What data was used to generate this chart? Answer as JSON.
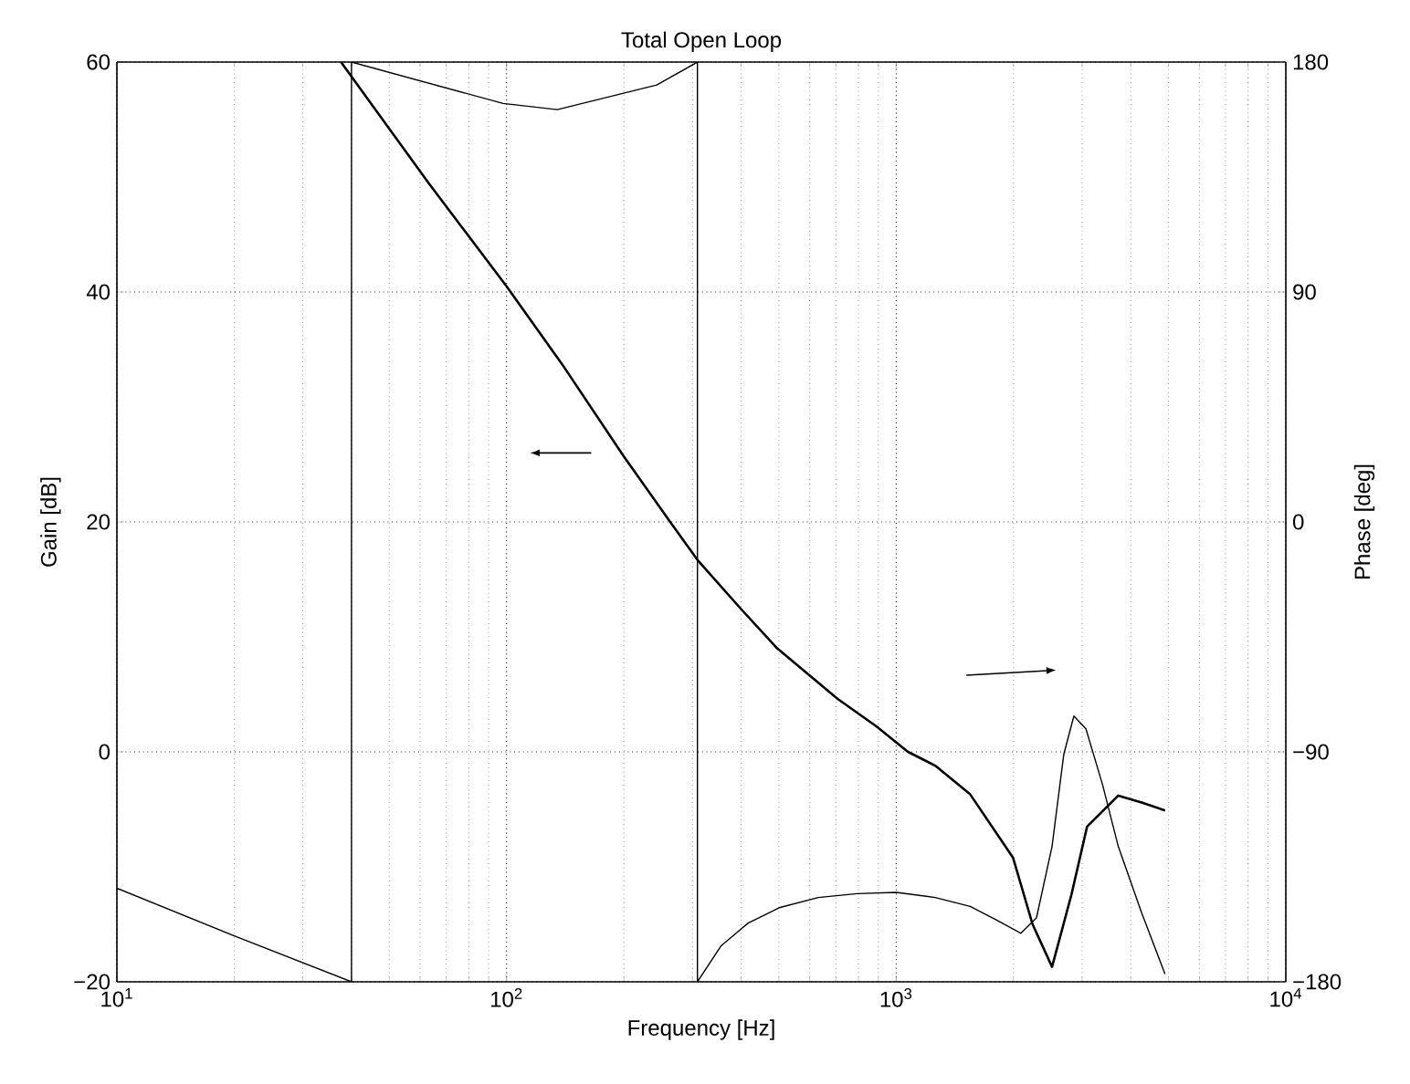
{
  "chart_data": {
    "type": "line",
    "title": "Total Open Loop",
    "xlabel": "Frequency [Hz]",
    "ylabel": "Gain [dB]",
    "y2label": "Phase [deg]",
    "log": "x",
    "grid": true,
    "xlim": [
      10,
      10000
    ],
    "xticks": [
      {
        "value": 10,
        "label": "10$^{1}$"
      },
      {
        "value": 100,
        "label": "10$^{2}$"
      },
      {
        "value": 1000,
        "label": "10$^{3}$"
      },
      {
        "value": 10000,
        "label": "10$^{4}$"
      }
    ],
    "ylim": [
      -20,
      60
    ],
    "yticks": [
      {
        "value": -20,
        "label": "−20"
      },
      0,
      20,
      40,
      60
    ],
    "y2lim": [
      -180,
      180
    ],
    "y2ticks": [
      {
        "value": -180,
        "label": "−180"
      },
      {
        "value": -90,
        "label": "−90"
      },
      0,
      90,
      180
    ],
    "series": [
      {
        "color": "#000000",
        "x": [
          37.6,
          63,
          100,
          139,
          200,
          263,
          309,
          398,
          495,
          708,
          891,
          1072,
          1259,
          1549,
          1995,
          2239,
          2512,
          2818,
          3090,
          3715,
          4266,
          4898
        ],
        "values": [
          60,
          49.5,
          40.5,
          33.7,
          25.7,
          20,
          16.7,
          12.5,
          9,
          4.6,
          2.2,
          0,
          -1.2,
          -3.7,
          -9.2,
          -15,
          -18.7,
          -12.4,
          -6.5,
          -3.8,
          -4.4,
          -5.1
        ]
      },
      {
        "color": "#000000",
        "axis": "y2",
        "x": [
          10,
          20,
          40,
          40,
          98,
          135,
          243,
          309,
          309,
          355,
          417,
          501,
          631,
          794,
          1000,
          1259,
          1549,
          1820,
          2089,
          2291,
          2512,
          2692,
          2858,
          3069,
          3388,
          3715,
          4266,
          4898
        ],
        "values": [
          -143.4,
          -162,
          -180,
          180,
          163.8,
          161.4,
          171,
          180,
          -180,
          -166,
          -157,
          -151,
          -147,
          -145.5,
          -145,
          -147,
          -150.5,
          -156,
          -161,
          -155,
          -127,
          -91,
          -76,
          -81,
          -103,
          -127,
          -153,
          -177
        ]
      }
    ]
  }
}
